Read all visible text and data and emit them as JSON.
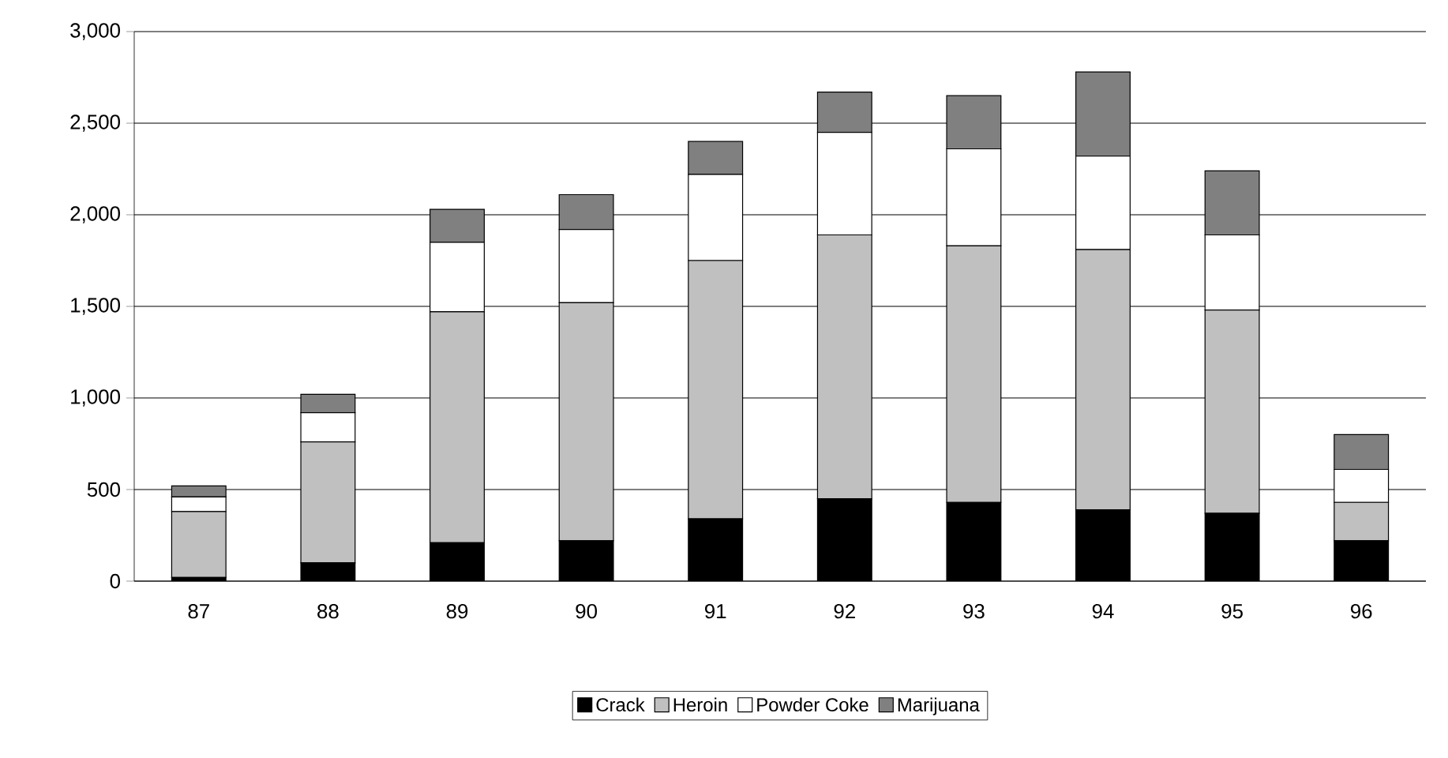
{
  "chart_data": {
    "type": "bar",
    "stacked": true,
    "categories": [
      "87",
      "88",
      "89",
      "90",
      "91",
      "92",
      "93",
      "94",
      "95",
      "96"
    ],
    "series": [
      {
        "name": "Crack",
        "color": "#000000",
        "values": [
          20,
          100,
          210,
          220,
          340,
          450,
          430,
          390,
          370,
          220
        ]
      },
      {
        "name": "Heroin",
        "color": "#c0c0c0",
        "values": [
          360,
          660,
          1260,
          1300,
          1410,
          1440,
          1400,
          1420,
          1110,
          210
        ]
      },
      {
        "name": "Powder Coke",
        "color": "#ffffff",
        "values": [
          80,
          160,
          380,
          400,
          470,
          560,
          530,
          510,
          410,
          180
        ]
      },
      {
        "name": "Marijuana",
        "color": "#808080",
        "values": [
          60,
          100,
          180,
          190,
          180,
          220,
          290,
          460,
          350,
          190
        ]
      }
    ],
    "ylim": [
      0,
      3000
    ],
    "yticks": [
      {
        "value": 0,
        "label": "0"
      },
      {
        "value": 500,
        "label": "500"
      },
      {
        "value": 1000,
        "label": "1,000"
      },
      {
        "value": 1500,
        "label": "1,500"
      },
      {
        "value": 2000,
        "label": "2,000"
      },
      {
        "value": 2500,
        "label": "2,500"
      },
      {
        "value": 3000,
        "label": "3,000"
      }
    ],
    "grid": "y",
    "legend": "bottom"
  }
}
